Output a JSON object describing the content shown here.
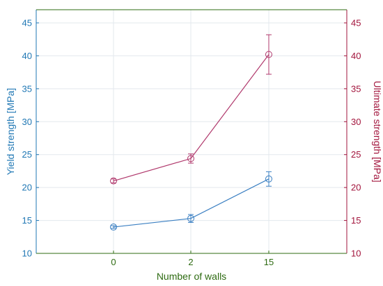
{
  "chart_data": {
    "type": "line",
    "xlabel": "Number of walls",
    "categories": [
      "0",
      "2",
      "15"
    ],
    "y_left": {
      "label": "Yield strength [MPa]",
      "lim": [
        10,
        47
      ],
      "ticks": [
        10,
        15,
        20,
        25,
        30,
        35,
        40,
        45
      ],
      "color": "#1f77b4"
    },
    "y_right": {
      "label": "Ultimate strength [MPa]",
      "lim": [
        10,
        47
      ],
      "ticks": [
        10,
        15,
        20,
        25,
        30,
        35,
        40,
        45
      ],
      "color": "#a2143c"
    },
    "x_axis_color": "#2e6b12",
    "grid": true,
    "series": [
      {
        "axis": "left",
        "color": "#3a7fc2",
        "values": [
          14.0,
          15.3,
          21.3
        ],
        "err": [
          0.2,
          0.6,
          1.1
        ]
      },
      {
        "axis": "right",
        "color": "#b0386c",
        "values": [
          21.0,
          24.4,
          40.2
        ],
        "err": [
          0.3,
          0.7,
          3.0
        ]
      }
    ]
  }
}
